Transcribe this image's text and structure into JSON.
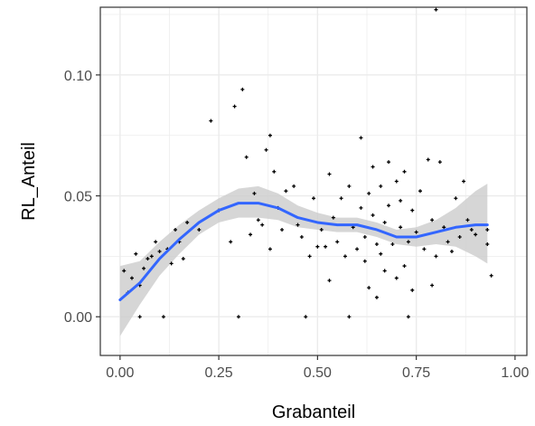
{
  "chart_data": {
    "type": "scatter",
    "xlabel": "Grabanteil",
    "ylabel": "RL_Anteil",
    "xlim": [
      -0.05,
      1.03
    ],
    "ylim": [
      -0.016,
      0.128
    ],
    "x_ticks": [
      0.0,
      0.25,
      0.5,
      0.75,
      1.0
    ],
    "x_tick_labels": [
      "0.00",
      "0.25",
      "0.50",
      "0.75",
      "1.00"
    ],
    "y_ticks": [
      0.0,
      0.05,
      0.1
    ],
    "y_tick_labels": [
      "0.00",
      "0.05",
      "0.10"
    ],
    "grid": true,
    "colors": {
      "points": "#000000",
      "smooth": "#3366FF",
      "band": "#cccccc",
      "panel_border": "#333333",
      "grid": "#ebebeb"
    },
    "points": [
      [
        0.01,
        0.019
      ],
      [
        0.02,
        0.01
      ],
      [
        0.03,
        0.016
      ],
      [
        0.04,
        0.026
      ],
      [
        0.05,
        0.0
      ],
      [
        0.05,
        0.013
      ],
      [
        0.06,
        0.02
      ],
      [
        0.07,
        0.024
      ],
      [
        0.08,
        0.025
      ],
      [
        0.09,
        0.031
      ],
      [
        0.1,
        0.027
      ],
      [
        0.11,
        0.0
      ],
      [
        0.12,
        0.028
      ],
      [
        0.13,
        0.022
      ],
      [
        0.14,
        0.036
      ],
      [
        0.15,
        0.031
      ],
      [
        0.16,
        0.024
      ],
      [
        0.17,
        0.039
      ],
      [
        0.2,
        0.036
      ],
      [
        0.23,
        0.081
      ],
      [
        0.25,
        0.044
      ],
      [
        0.28,
        0.031
      ],
      [
        0.29,
        0.087
      ],
      [
        0.3,
        0.0
      ],
      [
        0.31,
        0.094
      ],
      [
        0.32,
        0.066
      ],
      [
        0.33,
        0.034
      ],
      [
        0.34,
        0.051
      ],
      [
        0.35,
        0.04
      ],
      [
        0.36,
        0.038
      ],
      [
        0.37,
        0.069
      ],
      [
        0.38,
        0.028
      ],
      [
        0.38,
        0.075
      ],
      [
        0.39,
        0.06
      ],
      [
        0.4,
        0.045
      ],
      [
        0.41,
        0.036
      ],
      [
        0.42,
        0.052
      ],
      [
        0.44,
        0.054
      ],
      [
        0.45,
        0.038
      ],
      [
        0.46,
        0.033
      ],
      [
        0.47,
        0.0
      ],
      [
        0.48,
        0.025
      ],
      [
        0.49,
        0.049
      ],
      [
        0.5,
        0.029
      ],
      [
        0.51,
        0.036
      ],
      [
        0.52,
        0.029
      ],
      [
        0.53,
        0.015
      ],
      [
        0.53,
        0.059
      ],
      [
        0.54,
        0.041
      ],
      [
        0.55,
        0.031
      ],
      [
        0.56,
        0.049
      ],
      [
        0.57,
        0.025
      ],
      [
        0.58,
        0.0
      ],
      [
        0.58,
        0.054
      ],
      [
        0.59,
        0.037
      ],
      [
        0.6,
        0.028
      ],
      [
        0.61,
        0.074
      ],
      [
        0.61,
        0.045
      ],
      [
        0.62,
        0.033
      ],
      [
        0.62,
        0.023
      ],
      [
        0.63,
        0.051
      ],
      [
        0.63,
        0.012
      ],
      [
        0.64,
        0.042
      ],
      [
        0.64,
        0.062
      ],
      [
        0.65,
        0.03
      ],
      [
        0.65,
        0.008
      ],
      [
        0.66,
        0.054
      ],
      [
        0.66,
        0.026
      ],
      [
        0.67,
        0.039
      ],
      [
        0.67,
        0.019
      ],
      [
        0.68,
        0.046
      ],
      [
        0.68,
        0.064
      ],
      [
        0.69,
        0.03
      ],
      [
        0.7,
        0.056
      ],
      [
        0.7,
        0.016
      ],
      [
        0.71,
        0.037
      ],
      [
        0.71,
        0.048
      ],
      [
        0.72,
        0.021
      ],
      [
        0.72,
        0.06
      ],
      [
        0.73,
        0.0
      ],
      [
        0.73,
        0.031
      ],
      [
        0.74,
        0.011
      ],
      [
        0.74,
        0.044
      ],
      [
        0.75,
        0.035
      ],
      [
        0.76,
        0.052
      ],
      [
        0.77,
        0.028
      ],
      [
        0.78,
        0.065
      ],
      [
        0.79,
        0.013
      ],
      [
        0.79,
        0.04
      ],
      [
        0.8,
        0.127
      ],
      [
        0.8,
        0.025
      ],
      [
        0.81,
        0.064
      ],
      [
        0.82,
        0.037
      ],
      [
        0.83,
        0.031
      ],
      [
        0.84,
        0.027
      ],
      [
        0.85,
        0.049
      ],
      [
        0.86,
        0.033
      ],
      [
        0.87,
        0.056
      ],
      [
        0.88,
        0.04
      ],
      [
        0.89,
        0.036
      ],
      [
        0.9,
        0.034
      ],
      [
        0.93,
        0.03
      ],
      [
        0.94,
        0.017
      ],
      [
        0.93,
        0.036
      ]
    ],
    "smooth": [
      [
        0.0,
        0.007
      ],
      [
        0.05,
        0.014
      ],
      [
        0.1,
        0.024
      ],
      [
        0.15,
        0.032
      ],
      [
        0.2,
        0.039
      ],
      [
        0.25,
        0.044
      ],
      [
        0.3,
        0.047
      ],
      [
        0.35,
        0.047
      ],
      [
        0.4,
        0.045
      ],
      [
        0.45,
        0.041
      ],
      [
        0.5,
        0.039
      ],
      [
        0.55,
        0.038
      ],
      [
        0.6,
        0.038
      ],
      [
        0.65,
        0.036
      ],
      [
        0.7,
        0.033
      ],
      [
        0.75,
        0.033
      ],
      [
        0.8,
        0.035
      ],
      [
        0.85,
        0.037
      ],
      [
        0.9,
        0.038
      ],
      [
        0.93,
        0.038
      ]
    ],
    "band_lower": [
      [
        0.0,
        -0.008
      ],
      [
        0.05,
        0.005
      ],
      [
        0.1,
        0.017
      ],
      [
        0.15,
        0.026
      ],
      [
        0.2,
        0.034
      ],
      [
        0.25,
        0.039
      ],
      [
        0.3,
        0.041
      ],
      [
        0.35,
        0.041
      ],
      [
        0.4,
        0.04
      ],
      [
        0.45,
        0.037
      ],
      [
        0.5,
        0.036
      ],
      [
        0.55,
        0.035
      ],
      [
        0.6,
        0.035
      ],
      [
        0.65,
        0.033
      ],
      [
        0.7,
        0.03
      ],
      [
        0.75,
        0.029
      ],
      [
        0.8,
        0.03
      ],
      [
        0.85,
        0.029
      ],
      [
        0.9,
        0.025
      ],
      [
        0.93,
        0.022
      ]
    ],
    "band_upper": [
      [
        0.0,
        0.021
      ],
      [
        0.05,
        0.023
      ],
      [
        0.1,
        0.031
      ],
      [
        0.15,
        0.038
      ],
      [
        0.2,
        0.044
      ],
      [
        0.25,
        0.049
      ],
      [
        0.3,
        0.053
      ],
      [
        0.35,
        0.054
      ],
      [
        0.4,
        0.051
      ],
      [
        0.45,
        0.046
      ],
      [
        0.5,
        0.043
      ],
      [
        0.55,
        0.041
      ],
      [
        0.6,
        0.041
      ],
      [
        0.65,
        0.039
      ],
      [
        0.7,
        0.036
      ],
      [
        0.75,
        0.037
      ],
      [
        0.8,
        0.04
      ],
      [
        0.85,
        0.045
      ],
      [
        0.9,
        0.052
      ],
      [
        0.93,
        0.055
      ]
    ]
  }
}
